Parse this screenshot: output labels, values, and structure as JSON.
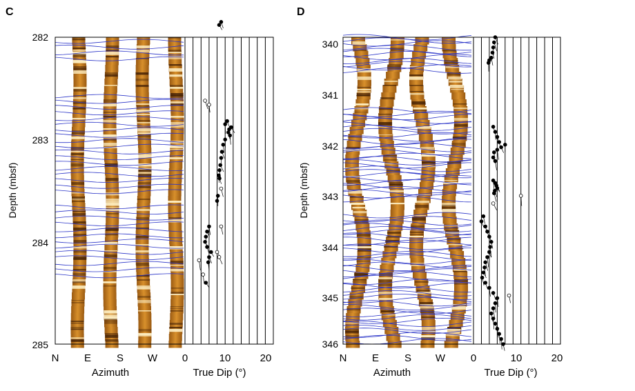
{
  "figure": {
    "panels": [
      {
        "id": "C",
        "letter": "C",
        "ylabel": "Depth (mbsf)",
        "depth_ticks": [
          "282",
          "283",
          "284",
          "285"
        ],
        "azimuth_ticks": [
          "N",
          "E",
          "S",
          "W"
        ],
        "azimuth_label": "Azimuth",
        "dip_ticks": [
          "0",
          "10",
          "20"
        ],
        "dip_label": "True Dip (°)"
      },
      {
        "id": "D",
        "letter": "D",
        "ylabel": "Depth (mbsf)",
        "depth_ticks": [
          "340",
          "341",
          "342",
          "343",
          "344",
          "345",
          "346"
        ],
        "azimuth_ticks": [
          "N",
          "E",
          "S",
          "W"
        ],
        "azimuth_label": "Azimuth",
        "dip_ticks": [
          "0",
          "10",
          "20"
        ],
        "dip_label": "True Dip (°)"
      }
    ]
  },
  "chart_data": [
    {
      "type": "scatter",
      "title": "C",
      "ylabel": "Depth (mbsf)",
      "xlabel": "True Dip (°)",
      "ylim": [
        282,
        285
      ],
      "xlim": [
        0,
        22
      ],
      "yticks": [
        282,
        283,
        284,
        285
      ],
      "xticks": [
        0,
        10,
        20
      ],
      "series": [
        {
          "marker": "filled",
          "depth": [
            281.85,
            281.88,
            282.82,
            282.85,
            282.88,
            282.9,
            282.93,
            282.96,
            283.0,
            283.05,
            283.12,
            283.18,
            283.25,
            283.3,
            283.35,
            283.38,
            283.55,
            283.6,
            283.85,
            283.9,
            283.95,
            284.0,
            284.05,
            284.1,
            284.15,
            284.2,
            284.4
          ],
          "dip": [
            9,
            8.5,
            10.5,
            10,
            11.5,
            11,
            10.8,
            11.2,
            10,
            9.5,
            9.2,
            9,
            8.8,
            8.6,
            8.4,
            8.6,
            8.2,
            8,
            6,
            5.5,
            5.2,
            5,
            5.5,
            6.5,
            6,
            5.8,
            5.2
          ]
        },
        {
          "marker": "open",
          "depth": [
            282.62,
            282.66,
            283.48,
            283.85,
            284.1,
            284.15,
            284.18,
            284.32
          ],
          "dip": [
            5,
            6,
            9,
            9,
            8,
            8.5,
            3.5,
            4.5
          ]
        }
      ]
    },
    {
      "type": "scatter",
      "title": "D",
      "ylabel": "Depth (mbsf)",
      "xlabel": "True Dip (°)",
      "ylim": [
        340,
        346
      ],
      "xlim": [
        0,
        22
      ],
      "yticks": [
        340,
        341,
        342,
        343,
        344,
        345,
        346
      ],
      "xticks": [
        0,
        10,
        20
      ],
      "series": [
        {
          "marker": "filled",
          "depth": [
            340.0,
            340.1,
            340.2,
            340.3,
            340.4,
            340.45,
            340.5,
            341.75,
            341.85,
            341.95,
            342.05,
            342.1,
            342.15,
            342.2,
            342.25,
            342.35,
            342.42,
            342.8,
            342.85,
            342.9,
            342.95,
            343.0,
            343.05,
            343.5,
            343.6,
            343.7,
            343.8,
            343.9,
            344.0,
            344.1,
            344.2,
            344.3,
            344.4,
            344.5,
            344.6,
            344.7,
            344.8,
            344.9,
            345.0,
            345.1,
            345.2,
            345.3,
            345.4,
            345.5,
            345.6,
            345.7,
            345.8,
            345.9,
            346.0
          ],
          "dip": [
            5.5,
            5.2,
            5,
            4.8,
            4.5,
            4,
            3.8,
            5,
            5.5,
            6,
            6.5,
            8,
            7,
            6,
            5.2,
            5,
            5.5,
            5,
            5.5,
            5.8,
            6,
            5.4,
            5.2,
            2.5,
            2,
            3,
            3.5,
            4,
            4.5,
            4.2,
            4,
            3.5,
            3,
            2.8,
            2.5,
            2.2,
            3,
            4,
            5,
            6,
            5.5,
            5,
            4.5,
            5,
            5.5,
            6,
            6.5,
            7,
            7.5
          ]
        },
        {
          "marker": "open",
          "depth": [
            343.1,
            343.25,
            345.05
          ],
          "dip": [
            12,
            5,
            9
          ]
        }
      ]
    }
  ]
}
